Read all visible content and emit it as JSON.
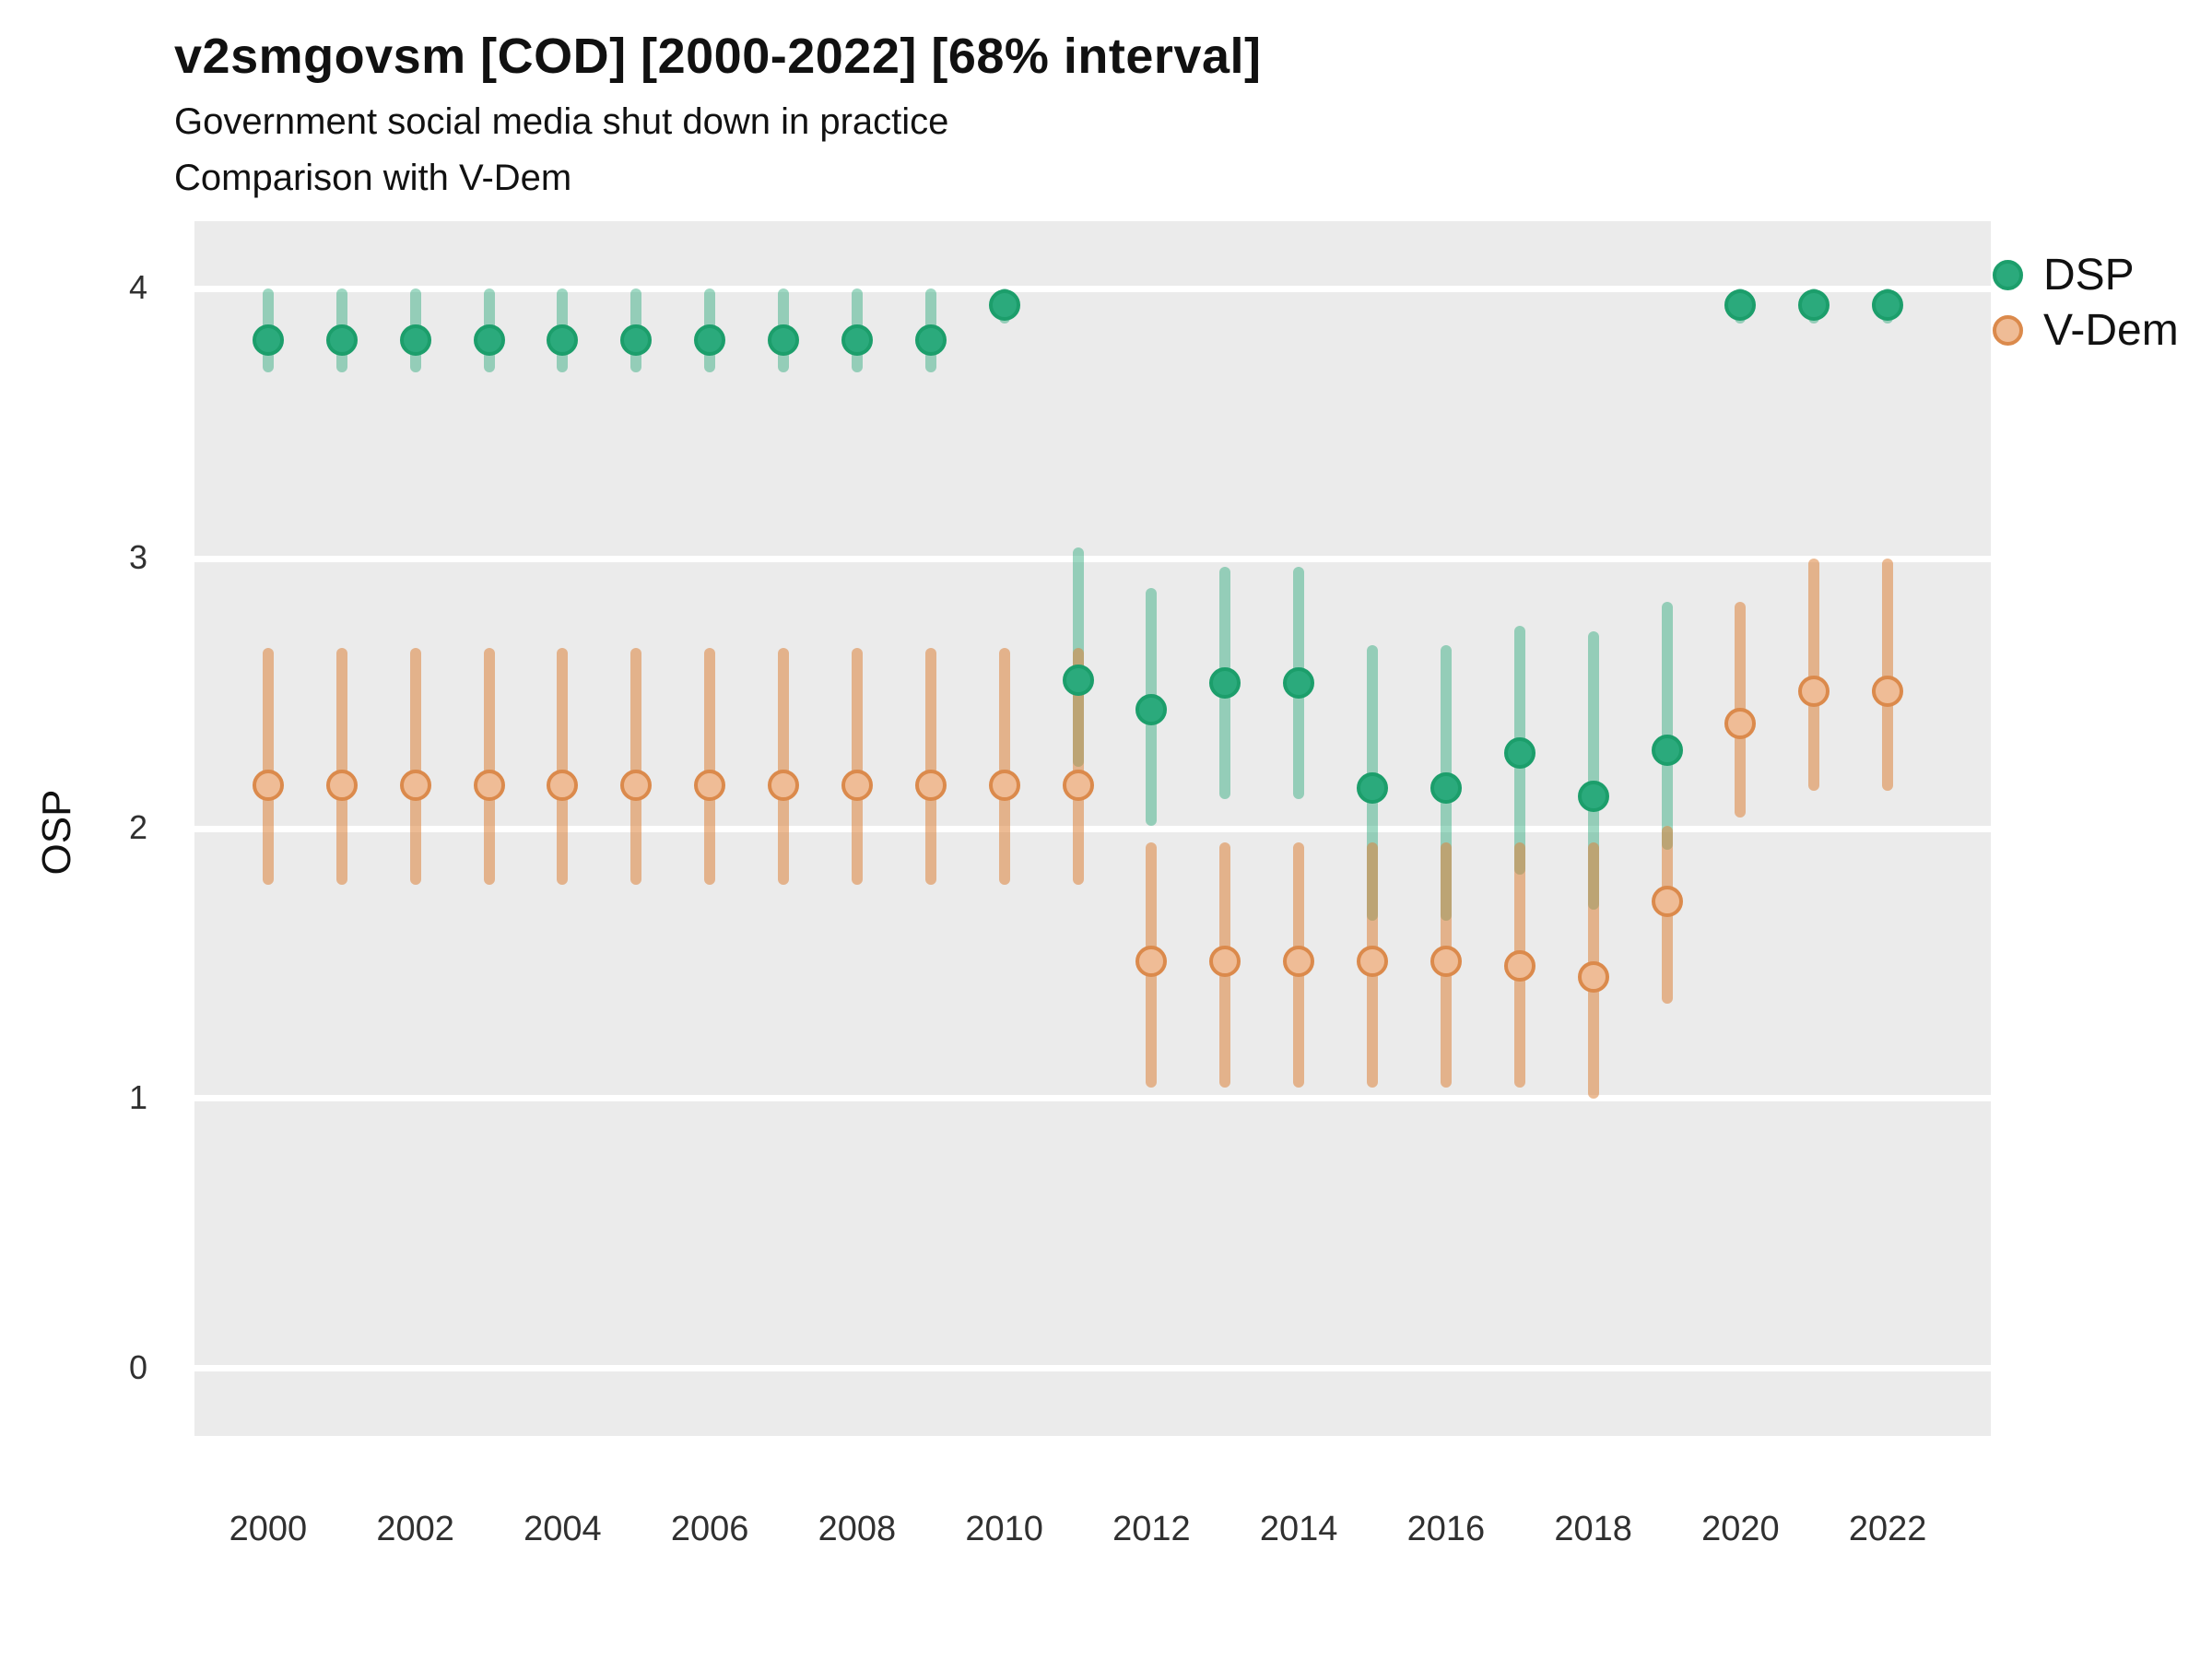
{
  "chart_data": {
    "type": "scatter",
    "variant": "point-interval (pointrange)",
    "title": "v2smgovsm [COD] [2000-2022] [68% interval]",
    "subtitle": "Government social media shut down in practice",
    "subtitle2": "Comparison with V-Dem",
    "ylabel": "OSP",
    "xlabel": "",
    "xlim": [
      1999,
      2023.4
    ],
    "ylim": [
      -0.25,
      4.25
    ],
    "xticks": [
      2000,
      2002,
      2004,
      2006,
      2008,
      2010,
      2012,
      2014,
      2016,
      2018,
      2020,
      2022
    ],
    "yticks": [
      0,
      1,
      2,
      3,
      4
    ],
    "grid": "horizontal white lines on grey panel",
    "legend_position": "right-top",
    "panel_bg": "#EBEBEB",
    "gridline_color": "#FFFFFF",
    "series": [
      {
        "name": "DSP",
        "point_fill": "#2BAA7C",
        "point_stroke": "#1C9E6B",
        "interval_color": "rgba(42,169,123,0.45)",
        "points": [
          {
            "year": 2000,
            "est": 3.81,
            "lo": 3.69,
            "hi": 4.0
          },
          {
            "year": 2001,
            "est": 3.81,
            "lo": 3.69,
            "hi": 4.0
          },
          {
            "year": 2002,
            "est": 3.81,
            "lo": 3.69,
            "hi": 4.0
          },
          {
            "year": 2003,
            "est": 3.81,
            "lo": 3.69,
            "hi": 4.0
          },
          {
            "year": 2004,
            "est": 3.81,
            "lo": 3.69,
            "hi": 4.0
          },
          {
            "year": 2005,
            "est": 3.81,
            "lo": 3.69,
            "hi": 4.0
          },
          {
            "year": 2006,
            "est": 3.81,
            "lo": 3.69,
            "hi": 4.0
          },
          {
            "year": 2007,
            "est": 3.81,
            "lo": 3.69,
            "hi": 4.0
          },
          {
            "year": 2008,
            "est": 3.81,
            "lo": 3.69,
            "hi": 4.0
          },
          {
            "year": 2009,
            "est": 3.81,
            "lo": 3.69,
            "hi": 4.0
          },
          {
            "year": 2010,
            "est": 3.94,
            "lo": 3.87,
            "hi": 4.0
          },
          {
            "year": 2011,
            "est": 2.55,
            "lo": 2.23,
            "hi": 3.04
          },
          {
            "year": 2012,
            "est": 2.44,
            "lo": 2.01,
            "hi": 2.89
          },
          {
            "year": 2013,
            "est": 2.54,
            "lo": 2.11,
            "hi": 2.97
          },
          {
            "year": 2014,
            "est": 2.54,
            "lo": 2.11,
            "hi": 2.97
          },
          {
            "year": 2015,
            "est": 2.15,
            "lo": 1.66,
            "hi": 2.68
          },
          {
            "year": 2016,
            "est": 2.15,
            "lo": 1.66,
            "hi": 2.68
          },
          {
            "year": 2017,
            "est": 2.28,
            "lo": 1.83,
            "hi": 2.75
          },
          {
            "year": 2018,
            "est": 2.12,
            "lo": 1.7,
            "hi": 2.73
          },
          {
            "year": 2019,
            "est": 2.29,
            "lo": 1.92,
            "hi": 2.84
          },
          {
            "year": 2020,
            "est": 3.94,
            "lo": 3.87,
            "hi": 4.0
          },
          {
            "year": 2021,
            "est": 3.94,
            "lo": 3.87,
            "hi": 4.0
          },
          {
            "year": 2022,
            "est": 3.94,
            "lo": 3.87,
            "hi": 4.0
          }
        ]
      },
      {
        "name": "V-Dem",
        "point_fill": "#EFBC96",
        "point_stroke": "#DB8A4C",
        "interval_color": "rgba(221,131,60,0.55)",
        "points": [
          {
            "year": 2000,
            "est": 2.16,
            "lo": 1.79,
            "hi": 2.67
          },
          {
            "year": 2001,
            "est": 2.16,
            "lo": 1.79,
            "hi": 2.67
          },
          {
            "year": 2002,
            "est": 2.16,
            "lo": 1.79,
            "hi": 2.67
          },
          {
            "year": 2003,
            "est": 2.16,
            "lo": 1.79,
            "hi": 2.67
          },
          {
            "year": 2004,
            "est": 2.16,
            "lo": 1.79,
            "hi": 2.67
          },
          {
            "year": 2005,
            "est": 2.16,
            "lo": 1.79,
            "hi": 2.67
          },
          {
            "year": 2006,
            "est": 2.16,
            "lo": 1.79,
            "hi": 2.67
          },
          {
            "year": 2007,
            "est": 2.16,
            "lo": 1.79,
            "hi": 2.67
          },
          {
            "year": 2008,
            "est": 2.16,
            "lo": 1.79,
            "hi": 2.67
          },
          {
            "year": 2009,
            "est": 2.16,
            "lo": 1.79,
            "hi": 2.67
          },
          {
            "year": 2010,
            "est": 2.16,
            "lo": 1.79,
            "hi": 2.67
          },
          {
            "year": 2011,
            "est": 2.16,
            "lo": 1.79,
            "hi": 2.67
          },
          {
            "year": 2012,
            "est": 1.51,
            "lo": 1.04,
            "hi": 1.95
          },
          {
            "year": 2013,
            "est": 1.51,
            "lo": 1.04,
            "hi": 1.95
          },
          {
            "year": 2014,
            "est": 1.51,
            "lo": 1.04,
            "hi": 1.95
          },
          {
            "year": 2015,
            "est": 1.51,
            "lo": 1.04,
            "hi": 1.95
          },
          {
            "year": 2016,
            "est": 1.51,
            "lo": 1.04,
            "hi": 1.95
          },
          {
            "year": 2017,
            "est": 1.49,
            "lo": 1.04,
            "hi": 1.95
          },
          {
            "year": 2018,
            "est": 1.45,
            "lo": 1.0,
            "hi": 1.95
          },
          {
            "year": 2019,
            "est": 1.73,
            "lo": 1.35,
            "hi": 2.01
          },
          {
            "year": 2020,
            "est": 2.39,
            "lo": 2.04,
            "hi": 2.84
          },
          {
            "year": 2021,
            "est": 2.51,
            "lo": 2.14,
            "hi": 3.0
          },
          {
            "year": 2022,
            "est": 2.51,
            "lo": 2.14,
            "hi": 3.0
          }
        ]
      }
    ]
  }
}
